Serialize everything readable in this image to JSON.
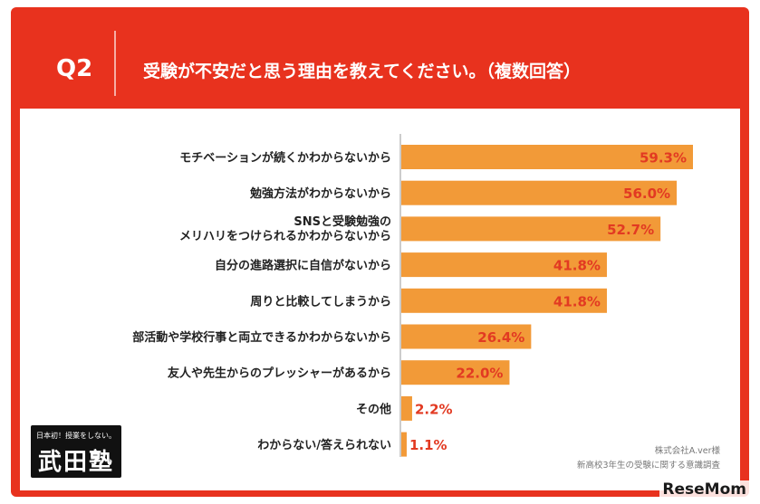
{
  "header": {
    "question": "Q2",
    "title": "受験が不安だと思う理由を教えてください。（複数回答）"
  },
  "chart_data": {
    "type": "bar",
    "orientation": "horizontal",
    "categories": [
      [
        "モチベーションが続くかわからないから"
      ],
      [
        "勉強方法がわからないから"
      ],
      [
        "SNSと受験勉強の",
        "メリハリをつけられるかわからないから"
      ],
      [
        "自分の進路選択に自信がないから"
      ],
      [
        "周りと比較してしまうから"
      ],
      [
        "部活動や学校行事と両立できるかわからないから"
      ],
      [
        "友人や先生からのプレッシャーがあるから"
      ],
      [
        "その他"
      ],
      [
        "わからない/答えられない"
      ]
    ],
    "values": [
      59.3,
      56.0,
      52.7,
      41.8,
      41.8,
      26.4,
      22.0,
      2.2,
      1.1
    ],
    "value_labels": [
      "59.3%",
      "56.0%",
      "52.7%",
      "41.8%",
      "41.8%",
      "26.4%",
      "22.0%",
      "2.2%",
      "1.1%"
    ],
    "unit": "%",
    "xlim": [
      0,
      65
    ],
    "grid": false,
    "bar_color": "#f29a38",
    "label_color_inside": "#ffffff",
    "label_color_outside": "#e23a22"
  },
  "source": {
    "line1": "株式会社A.ver様",
    "line2": "新高校3年生の受験に関する意識調査"
  },
  "logo": {
    "tagline": "日本初！授業をしない。",
    "name": "武田塾"
  },
  "watermark": "ReseMom",
  "colors": {
    "frame": "#e8321e",
    "bar": "#f29a38",
    "axis": "#999999"
  }
}
